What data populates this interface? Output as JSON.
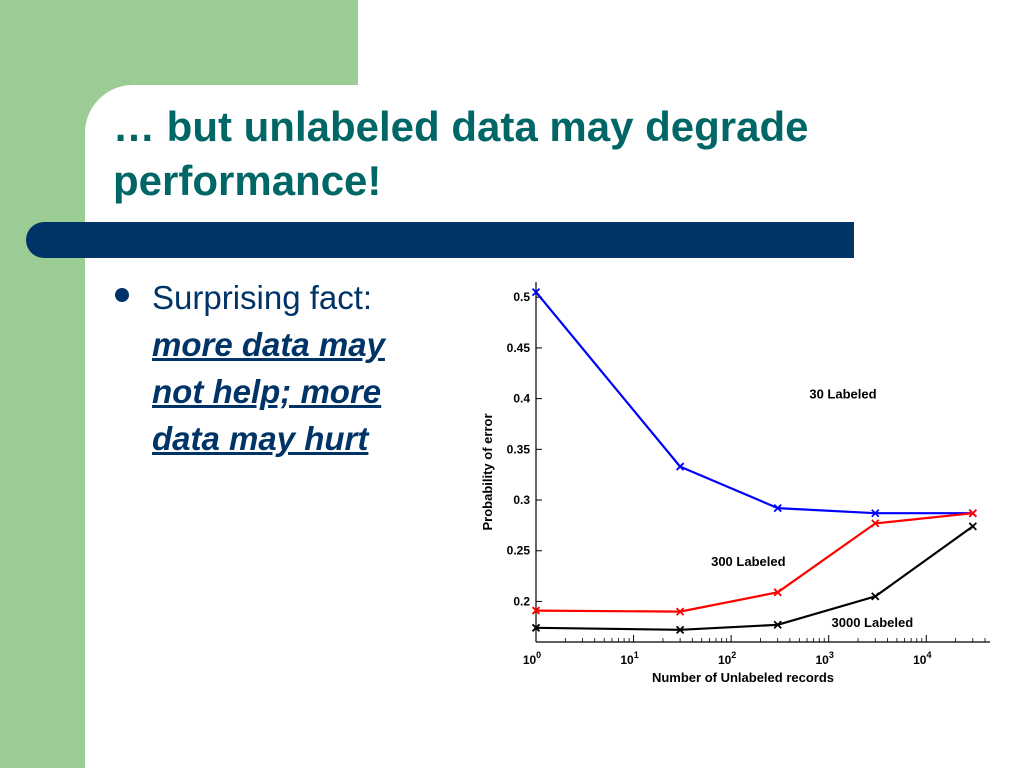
{
  "slide": {
    "title": "… but unlabeled data may degrade performance!",
    "bullet": {
      "lead": "Surprising fact:",
      "emphasis_lines": [
        "more data may",
        "not help; more",
        "data may hurt"
      ]
    }
  },
  "colors": {
    "green_band": "#9ccc95",
    "title": "#006666",
    "bar": "#003366",
    "series_30": "#0000ff",
    "series_300": "#ff0000",
    "series_3000": "#000000"
  },
  "chart_data": {
    "type": "line",
    "xlabel": "Number of Unlabeled records",
    "ylabel": "Probability of error",
    "xscale": "log",
    "xlim": [
      1,
      45000
    ],
    "ylim": [
      0.16,
      0.515
    ],
    "xticks": [
      {
        "value": 1,
        "base": "10",
        "exp": "0"
      },
      {
        "value": 10,
        "base": "10",
        "exp": "1"
      },
      {
        "value": 100,
        "base": "10",
        "exp": "2"
      },
      {
        "value": 1000,
        "base": "10",
        "exp": "3"
      },
      {
        "value": 10000,
        "base": "10",
        "exp": "4"
      }
    ],
    "yticks": [
      {
        "value": 0.2,
        "label": "0.2"
      },
      {
        "value": 0.25,
        "label": "0.25"
      },
      {
        "value": 0.3,
        "label": "0.3"
      },
      {
        "value": 0.35,
        "label": "0.35"
      },
      {
        "value": 0.4,
        "label": "0.4"
      },
      {
        "value": 0.45,
        "label": "0.45"
      },
      {
        "value": 0.5,
        "label": "0.5"
      }
    ],
    "grid": false,
    "series": [
      {
        "name": "30 Labeled",
        "color": "#0000ff",
        "x": [
          1,
          30,
          300,
          3000,
          30000
        ],
        "y": [
          0.505,
          0.333,
          0.292,
          0.287,
          0.287
        ],
        "label_at": [
          1400,
          0.4
        ]
      },
      {
        "name": "300 Labeled",
        "color": "#ff0000",
        "x": [
          1,
          30,
          300,
          3000,
          30000
        ],
        "y": [
          0.191,
          0.19,
          0.209,
          0.277,
          0.287
        ],
        "label_at": [
          150,
          0.235
        ]
      },
      {
        "name": "3000 Labeled",
        "color": "#000000",
        "x": [
          1,
          30,
          300,
          3000,
          30000
        ],
        "y": [
          0.174,
          0.172,
          0.177,
          0.205,
          0.274
        ],
        "label_at": [
          2800,
          0.175
        ]
      }
    ]
  }
}
